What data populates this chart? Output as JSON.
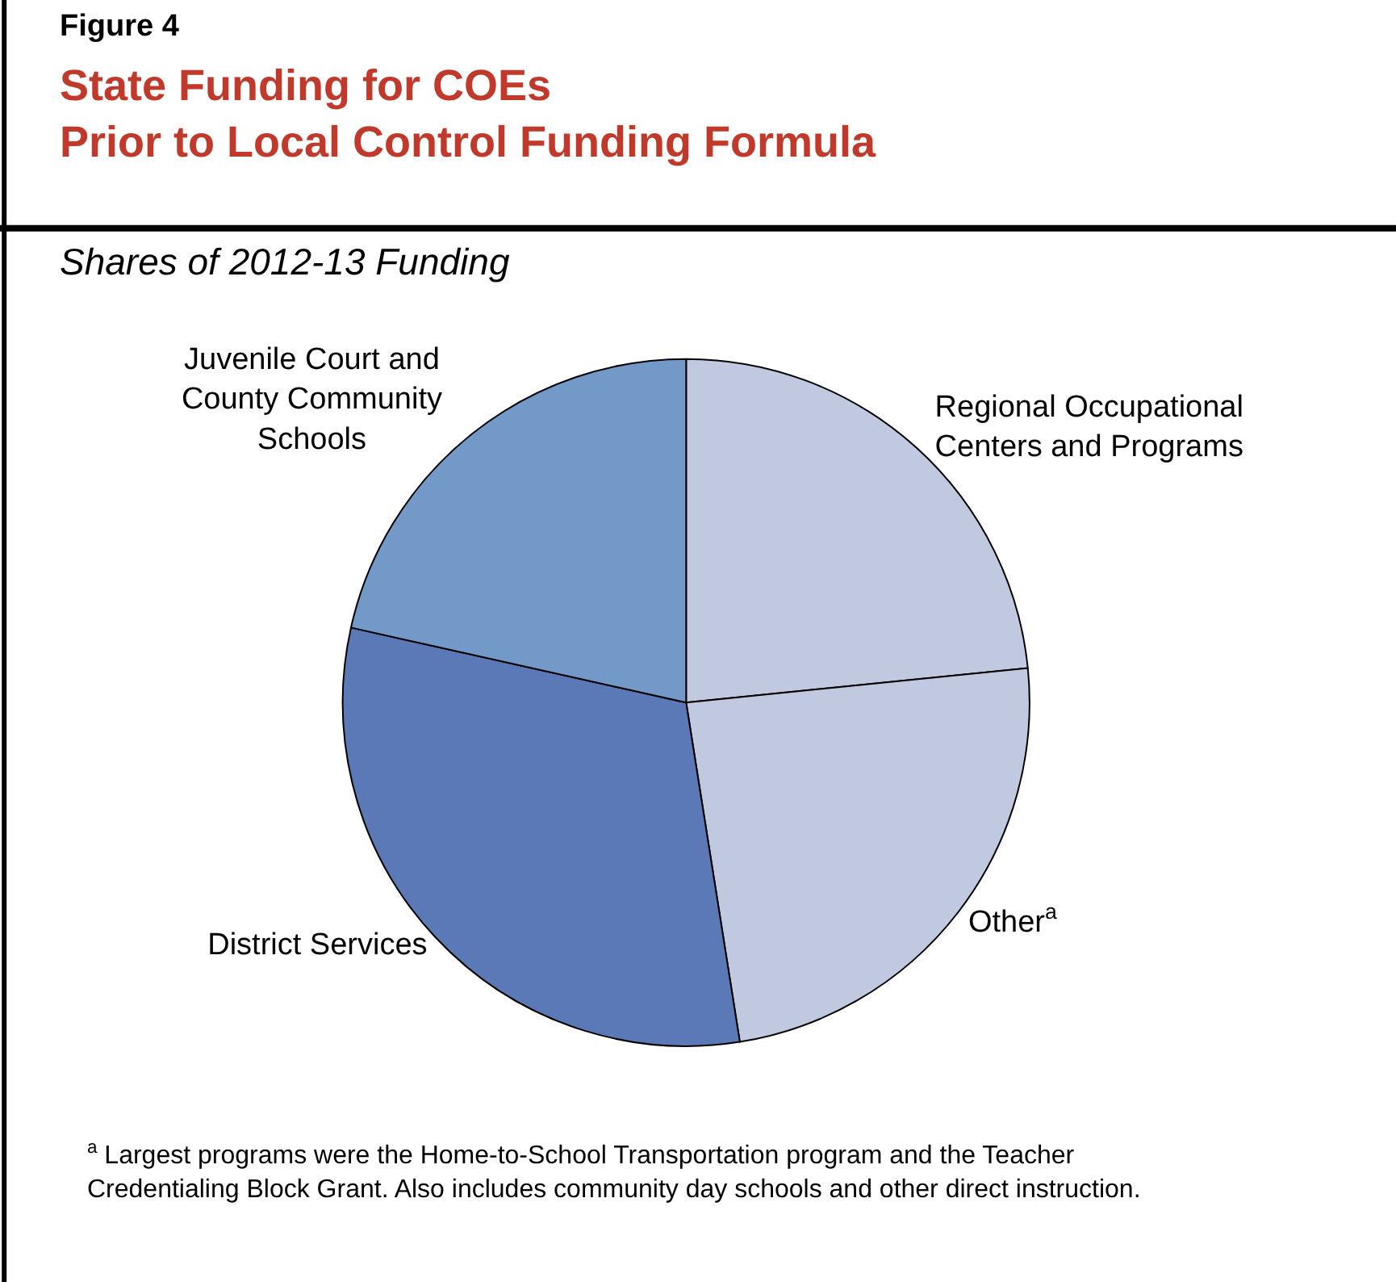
{
  "chart_data": {
    "type": "pie",
    "title": "State Funding for COEs\nPrior to Local Control Funding Formula",
    "subtitle": "Shares of 2012-13 Funding",
    "categories": [
      "Regional Occupational\nCenters and Programs",
      "Other$^{a}$",
      "District Services",
      "Juvenile Court and\nCounty Community\nSchools"
    ],
    "values": [
      23.4,
      24.1,
      31.0,
      21.5
    ],
    "colors": [
      "#c0c9df",
      "#c0c9df",
      "#5b79b6",
      "#7399c9"
    ],
    "legend": false,
    "annotations": [
      "Figure 4",
      "$^{a}$ Largest programs were the Home-to-School Transportation program and the Teacher\nCredentialing Block Grant. Also includes community day schools and other direct instruction."
    ]
  }
}
